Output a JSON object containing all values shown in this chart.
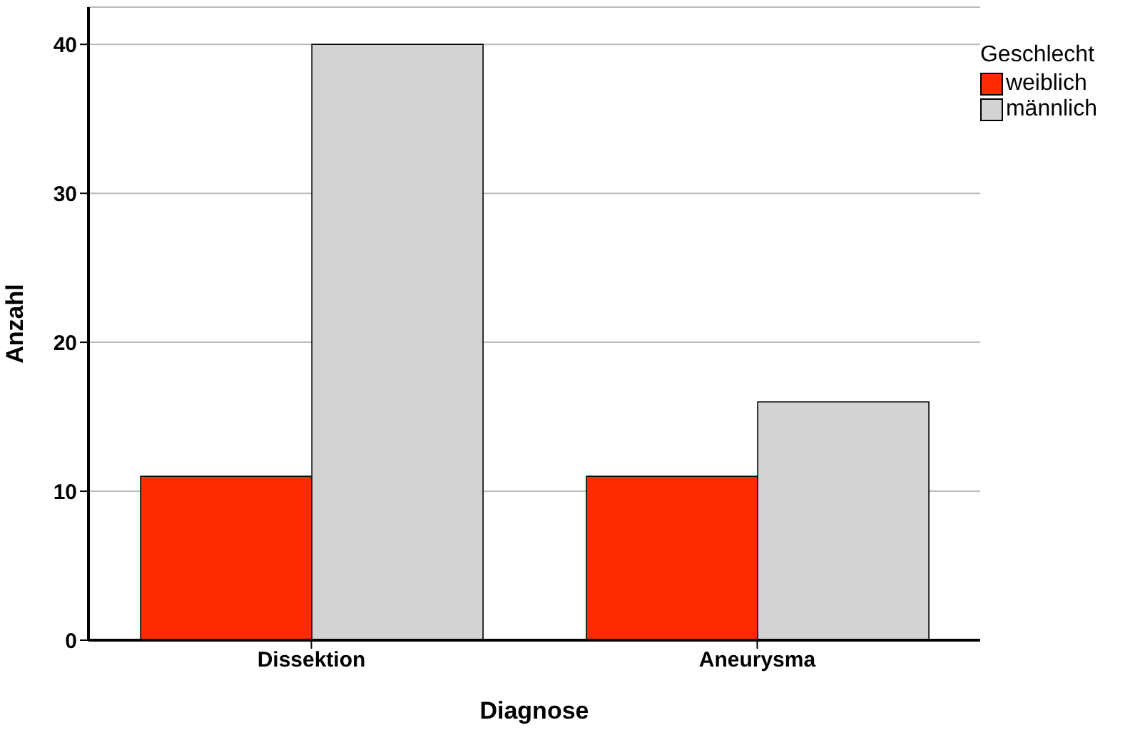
{
  "chart_data": {
    "type": "bar",
    "xlabel": "Diagnose",
    "ylabel": "Anzahl",
    "legend_title": "Geschlecht",
    "categories": [
      "Dissektion",
      "Aneurysma"
    ],
    "series": [
      {
        "name": "weiblich",
        "color": "#ff2a00",
        "values": [
          11,
          11
        ]
      },
      {
        "name": "männlich",
        "color": "#d3d3d3",
        "values": [
          40,
          16
        ]
      }
    ],
    "ylim": [
      0,
      42.5
    ],
    "yticks": [
      0,
      10,
      20,
      30,
      40
    ],
    "grid": "y",
    "legend": "top right"
  }
}
